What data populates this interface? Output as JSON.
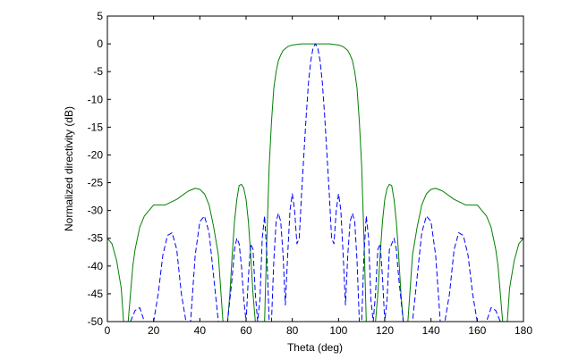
{
  "chart_data": {
    "type": "line",
    "title": "",
    "xlabel": "Theta (deg)",
    "ylabel": "Normalized directivity (dB)",
    "xlim": [
      0,
      180
    ],
    "ylim": [
      -50,
      5
    ],
    "xticks": [
      0,
      20,
      40,
      60,
      80,
      100,
      120,
      140,
      160,
      180
    ],
    "yticks": [
      5,
      0,
      -5,
      -10,
      -15,
      -20,
      -25,
      -30,
      -35,
      -40,
      -45,
      -50
    ],
    "grid": false,
    "legend": "none",
    "series": [
      {
        "color": "#008000",
        "style": "solid",
        "x": [
          0,
          2,
          4,
          6,
          7,
          8,
          9,
          10,
          11,
          12,
          14,
          16,
          20,
          25,
          30,
          35,
          38,
          40,
          42,
          44,
          46,
          48,
          49,
          50,
          51,
          52,
          53,
          54,
          55,
          56,
          57,
          58,
          59,
          60,
          61,
          62,
          63,
          64,
          65,
          66,
          67,
          68,
          69,
          70,
          71,
          72,
          73,
          74,
          75,
          76,
          78,
          80,
          82,
          84,
          86,
          88,
          90,
          92,
          94,
          96,
          98,
          100,
          102,
          104,
          105,
          106,
          107,
          108,
          109,
          110,
          111,
          112,
          113,
          114,
          115,
          116,
          117,
          118,
          119,
          120,
          121,
          122,
          123,
          124,
          125,
          126,
          127,
          128,
          129,
          130,
          131,
          132,
          134,
          136,
          138,
          140,
          142,
          145,
          150,
          155,
          160,
          164,
          166,
          168,
          169,
          170,
          171,
          172,
          173,
          174,
          176,
          178,
          180
        ],
        "y": [
          -35,
          -36,
          -39,
          -44,
          -50,
          -50,
          -50,
          -45,
          -40,
          -37,
          -33,
          -31,
          -29,
          -29,
          -28,
          -26.5,
          -26,
          -26.2,
          -27,
          -29,
          -33,
          -38,
          -44,
          -50,
          -50,
          -50,
          -45,
          -38,
          -32,
          -28,
          -25.5,
          -25.3,
          -26,
          -28,
          -32,
          -38,
          -45,
          -50,
          -50,
          -50,
          -50,
          -50,
          -35,
          -22,
          -14,
          -8,
          -5,
          -3,
          -2,
          -1.2,
          -0.5,
          -0.2,
          -0.1,
          0,
          0,
          0,
          0,
          0,
          0,
          0,
          -0.1,
          -0.2,
          -0.5,
          -1.2,
          -2,
          -3,
          -5,
          -8,
          -14,
          -22,
          -35,
          -50,
          -50,
          -50,
          -50,
          -50,
          -45,
          -38,
          -32,
          -28,
          -26,
          -25.3,
          -25.5,
          -28,
          -32,
          -38,
          -45,
          -50,
          -50,
          -50,
          -44,
          -38,
          -33,
          -29,
          -27,
          -26.2,
          -26,
          -26.5,
          -28,
          -29,
          -29,
          -31,
          -33,
          -37,
          -40,
          -45,
          -50,
          -50,
          -50,
          -44,
          -39,
          -36,
          -35
        ]
      },
      {
        "color": "#0000ff",
        "style": "dashed",
        "x": [
          10,
          12,
          14,
          16,
          18,
          20,
          22,
          24,
          26,
          28,
          30,
          32,
          34,
          36,
          38,
          40,
          42,
          44,
          46,
          48,
          50,
          52,
          54,
          55,
          56,
          57,
          58,
          59,
          60,
          61,
          62,
          63,
          64,
          65,
          66,
          67,
          68,
          69,
          70,
          71,
          72,
          73,
          74,
          75,
          76,
          77,
          78,
          79,
          80,
          81,
          82,
          83,
          84,
          85,
          86,
          87,
          88,
          89,
          90,
          91,
          92,
          93,
          94,
          95,
          96,
          97,
          98,
          99,
          100,
          101,
          102,
          103,
          104,
          105,
          106,
          107,
          108,
          109,
          110,
          111,
          112,
          113,
          114,
          115,
          116,
          117,
          118,
          119,
          120,
          121,
          122,
          123,
          124,
          125,
          126,
          128,
          130,
          132,
          134,
          136,
          138,
          140,
          142,
          144,
          146,
          148,
          150,
          152,
          154,
          156,
          158,
          160,
          162,
          164,
          166,
          168,
          170
        ],
        "y": [
          -50,
          -48,
          -47.5,
          -50,
          -50,
          -50,
          -45,
          -38,
          -34.5,
          -34,
          -37,
          -45,
          -50,
          -50,
          -38,
          -32,
          -31,
          -34,
          -42,
          -50,
          -50,
          -50,
          -42,
          -37,
          -35,
          -36,
          -40,
          -46,
          -50,
          -42,
          -36,
          -37,
          -45,
          -50,
          -46,
          -35,
          -31,
          -38,
          -50,
          -50,
          -39,
          -32,
          -30.5,
          -32,
          -38,
          -47,
          -38,
          -30,
          -27,
          -30,
          -36,
          -35,
          -27,
          -20,
          -13,
          -7,
          -3,
          -0.7,
          0,
          -0.7,
          -3,
          -7,
          -13,
          -20,
          -27,
          -35,
          -36,
          -30,
          -27,
          -30,
          -38,
          -47,
          -38,
          -32,
          -30.5,
          -32,
          -39,
          -50,
          -50,
          -38,
          -31,
          -35,
          -46,
          -50,
          -45,
          -37,
          -36,
          -42,
          -50,
          -46,
          -37,
          -36,
          -35,
          -37,
          -42,
          -50,
          -50,
          -50,
          -42,
          -34,
          -31,
          -32,
          -38,
          -50,
          -50,
          -45,
          -37,
          -34,
          -34.5,
          -38,
          -45,
          -50,
          -50,
          -50,
          -47.5,
          -48,
          -50
        ]
      }
    ]
  }
}
